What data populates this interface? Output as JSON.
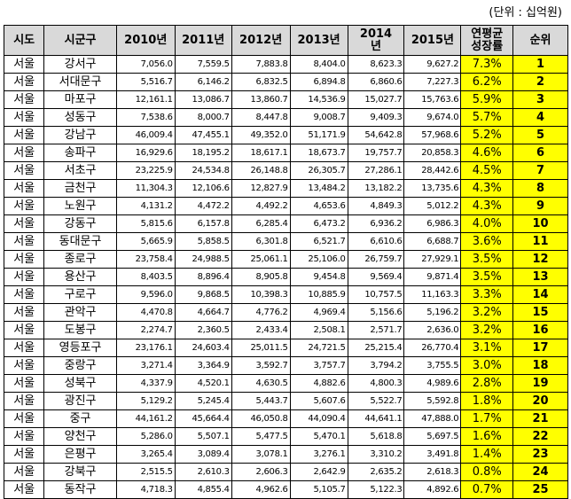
{
  "unit_label": "(단위 : 십억원)",
  "columns": [
    "시도",
    "시군구",
    "2010년",
    "2011년",
    "2012년",
    "2013년",
    "2014\n년",
    "2015년",
    "연평균\n성장률",
    "순위"
  ],
  "rows": [
    {
      "city": "서울",
      "district": "강서구",
      "y2010": "7,056.0",
      "y2011": "7,559.5",
      "y2012": "7,883.8",
      "y2013": "8,404.0",
      "y2014": "8,623.3",
      "y2015": "9,627.2",
      "growth": "7.3%",
      "rank": "1"
    },
    {
      "city": "서울",
      "district": "서대문구",
      "y2010": "5,516.7",
      "y2011": "6,146.2",
      "y2012": "6,832.5",
      "y2013": "6,894.8",
      "y2014": "6,860.6",
      "y2015": "7,227.3",
      "growth": "6.2%",
      "rank": "2"
    },
    {
      "city": "서울",
      "district": "마포구",
      "y2010": "12,161.1",
      "y2011": "13,086.7",
      "y2012": "13,860.7",
      "y2013": "14,536.9",
      "y2014": "15,027.7",
      "y2015": "15,763.6",
      "growth": "5.9%",
      "rank": "3"
    },
    {
      "city": "서울",
      "district": "성동구",
      "y2010": "7,538.6",
      "y2011": "8,000.7",
      "y2012": "8,447.8",
      "y2013": "9,008.7",
      "y2014": "9,409.3",
      "y2015": "9,674.0",
      "growth": "5.7%",
      "rank": "4"
    },
    {
      "city": "서울",
      "district": "강남구",
      "y2010": "46,009.4",
      "y2011": "47,455.1",
      "y2012": "49,352.0",
      "y2013": "51,171.9",
      "y2014": "54,642.8",
      "y2015": "57,968.6",
      "growth": "5.2%",
      "rank": "5"
    },
    {
      "city": "서울",
      "district": "송파구",
      "y2010": "16,929.6",
      "y2011": "18,195.2",
      "y2012": "18,617.1",
      "y2013": "18,673.7",
      "y2014": "19,757.7",
      "y2015": "20,858.3",
      "growth": "4.6%",
      "rank": "6"
    },
    {
      "city": "서울",
      "district": "서초구",
      "y2010": "23,225.9",
      "y2011": "24,534.8",
      "y2012": "26,148.8",
      "y2013": "26,305.7",
      "y2014": "27,286.1",
      "y2015": "28,442.6",
      "growth": "4.5%",
      "rank": "7"
    },
    {
      "city": "서울",
      "district": "금천구",
      "y2010": "11,304.3",
      "y2011": "12,106.6",
      "y2012": "12,827.9",
      "y2013": "13,484.2",
      "y2014": "13,182.2",
      "y2015": "13,735.6",
      "growth": "4.3%",
      "rank": "8"
    },
    {
      "city": "서울",
      "district": "노원구",
      "y2010": "4,131.2",
      "y2011": "4,472.2",
      "y2012": "4,492.2",
      "y2013": "4,653.6",
      "y2014": "4,849.3",
      "y2015": "5,012.2",
      "growth": "4.3%",
      "rank": "9"
    },
    {
      "city": "서울",
      "district": "강동구",
      "y2010": "5,815.6",
      "y2011": "6,157.8",
      "y2012": "6,285.4",
      "y2013": "6,473.2",
      "y2014": "6,936.2",
      "y2015": "6,986.3",
      "growth": "4.0%",
      "rank": "10"
    },
    {
      "city": "서울",
      "district": "동대문구",
      "y2010": "5,665.9",
      "y2011": "5,858.5",
      "y2012": "6,301.8",
      "y2013": "6,521.7",
      "y2014": "6,610.6",
      "y2015": "6,688.7",
      "growth": "3.6%",
      "rank": "11"
    },
    {
      "city": "서울",
      "district": "종로구",
      "y2010": "23,758.4",
      "y2011": "24,988.5",
      "y2012": "25,061.1",
      "y2013": "25,106.0",
      "y2014": "26,759.7",
      "y2015": "27,929.1",
      "growth": "3.5%",
      "rank": "12"
    },
    {
      "city": "서울",
      "district": "용산구",
      "y2010": "8,403.5",
      "y2011": "8,896.4",
      "y2012": "8,905.8",
      "y2013": "9,454.8",
      "y2014": "9,569.4",
      "y2015": "9,871.4",
      "growth": "3.5%",
      "rank": "13"
    },
    {
      "city": "서울",
      "district": "구로구",
      "y2010": "9,596.0",
      "y2011": "9,868.5",
      "y2012": "10,398.3",
      "y2013": "10,885.9",
      "y2014": "10,757.5",
      "y2015": "11,163.3",
      "growth": "3.3%",
      "rank": "14"
    },
    {
      "city": "서울",
      "district": "관악구",
      "y2010": "4,470.8",
      "y2011": "4,664.7",
      "y2012": "4,776.2",
      "y2013": "4,969.4",
      "y2014": "5,156.6",
      "y2015": "5,196.2",
      "growth": "3.2%",
      "rank": "15"
    },
    {
      "city": "서울",
      "district": "도봉구",
      "y2010": "2,274.7",
      "y2011": "2,360.5",
      "y2012": "2,433.4",
      "y2013": "2,508.1",
      "y2014": "2,571.7",
      "y2015": "2,636.0",
      "growth": "3.2%",
      "rank": "16"
    },
    {
      "city": "서울",
      "district": "영등포구",
      "y2010": "23,176.1",
      "y2011": "24,603.4",
      "y2012": "25,011.5",
      "y2013": "24,721.5",
      "y2014": "25,215.4",
      "y2015": "26,770.4",
      "growth": "3.1%",
      "rank": "17"
    },
    {
      "city": "서울",
      "district": "중랑구",
      "y2010": "3,271.4",
      "y2011": "3,364.9",
      "y2012": "3,592.7",
      "y2013": "3,757.7",
      "y2014": "3,794.2",
      "y2015": "3,755.5",
      "growth": "3.0%",
      "rank": "18"
    },
    {
      "city": "서울",
      "district": "성북구",
      "y2010": "4,337.9",
      "y2011": "4,520.1",
      "y2012": "4,630.5",
      "y2013": "4,882.6",
      "y2014": "4,800.3",
      "y2015": "4,989.6",
      "growth": "2.8%",
      "rank": "19"
    },
    {
      "city": "서울",
      "district": "광진구",
      "y2010": "5,129.2",
      "y2011": "5,245.4",
      "y2012": "5,443.7",
      "y2013": "5,607.6",
      "y2014": "5,522.7",
      "y2015": "5,592.8",
      "growth": "1.8%",
      "rank": "20"
    },
    {
      "city": "서울",
      "district": "중구",
      "y2010": "44,161.2",
      "y2011": "45,664.4",
      "y2012": "46,050.8",
      "y2013": "44,090.4",
      "y2014": "44,641.1",
      "y2015": "47,888.0",
      "growth": "1.7%",
      "rank": "21"
    },
    {
      "city": "서울",
      "district": "양천구",
      "y2010": "5,286.0",
      "y2011": "5,507.1",
      "y2012": "5,477.5",
      "y2013": "5,470.1",
      "y2014": "5,618.8",
      "y2015": "5,697.5",
      "growth": "1.6%",
      "rank": "22"
    },
    {
      "city": "서울",
      "district": "은평구",
      "y2010": "3,265.4",
      "y2011": "3,089.4",
      "y2012": "3,078.1",
      "y2013": "3,276.1",
      "y2014": "3,310.2",
      "y2015": "3,491.8",
      "growth": "1.4%",
      "rank": "23"
    },
    {
      "city": "서울",
      "district": "강북구",
      "y2010": "2,515.5",
      "y2011": "2,610.3",
      "y2012": "2,606.3",
      "y2013": "2,642.9",
      "y2014": "2,635.2",
      "y2015": "2,618.3",
      "growth": "0.8%",
      "rank": "24"
    },
    {
      "city": "서울",
      "district": "동작구",
      "y2010": "4,718.3",
      "y2011": "4,855.4",
      "y2012": "4,962.6",
      "y2013": "5,105.7",
      "y2014": "5,122.3",
      "y2015": "4,892.6",
      "growth": "0.7%",
      "rank": "25"
    }
  ]
}
